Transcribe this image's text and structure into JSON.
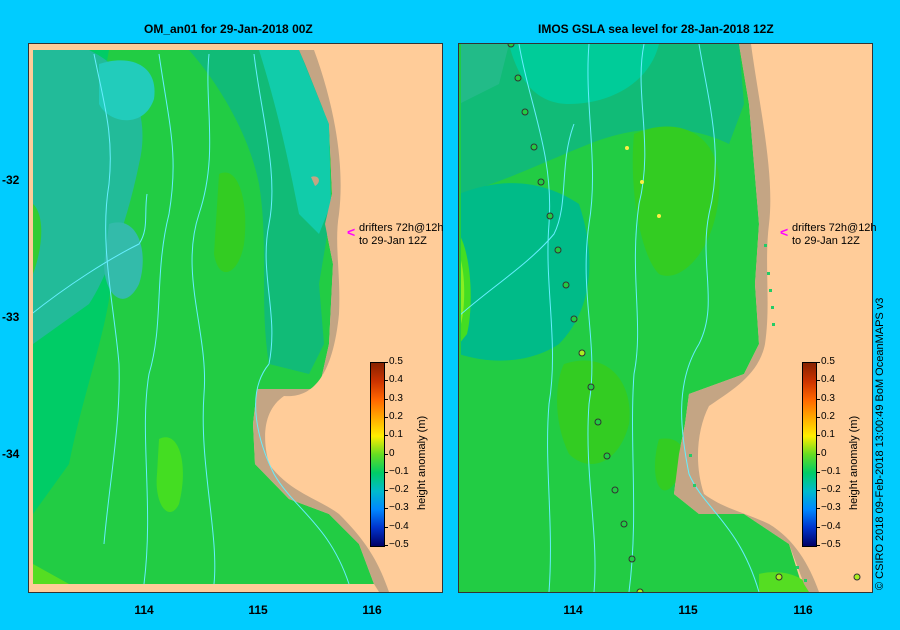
{
  "panels": [
    {
      "title": "OM_an01  for 29-Jan-2018 00Z"
    },
    {
      "title": "IMOS GSLA sea level   for 28-Jan-2018 12Z"
    }
  ],
  "annotation": {
    "line1": "drifters 72h@12h",
    "line2": "to 29-Jan 12Z",
    "arrow": "<",
    "arrow_color": "#ff00ff"
  },
  "colorbar": {
    "label": "height anomaly (m)",
    "ticks": [
      "0.5",
      "0.4",
      "0.3",
      "0.2",
      "0.1",
      "0",
      "−0.1",
      "−0.2",
      "−0.3",
      "−0.4",
      "−0.5"
    ]
  },
  "y_ticks": [
    "-32",
    "-33",
    "-34"
  ],
  "x_ticks": [
    "114",
    "115",
    "116"
  ],
  "credit": "© CSIRO 2018    09-Feb-2018 13:00:49 BoM OceanMAPS v3",
  "colors": {
    "land": "#c4a584",
    "ocean_bg": "#ffcc99",
    "frame": "#00ccff",
    "contour": "#66eeff"
  }
}
